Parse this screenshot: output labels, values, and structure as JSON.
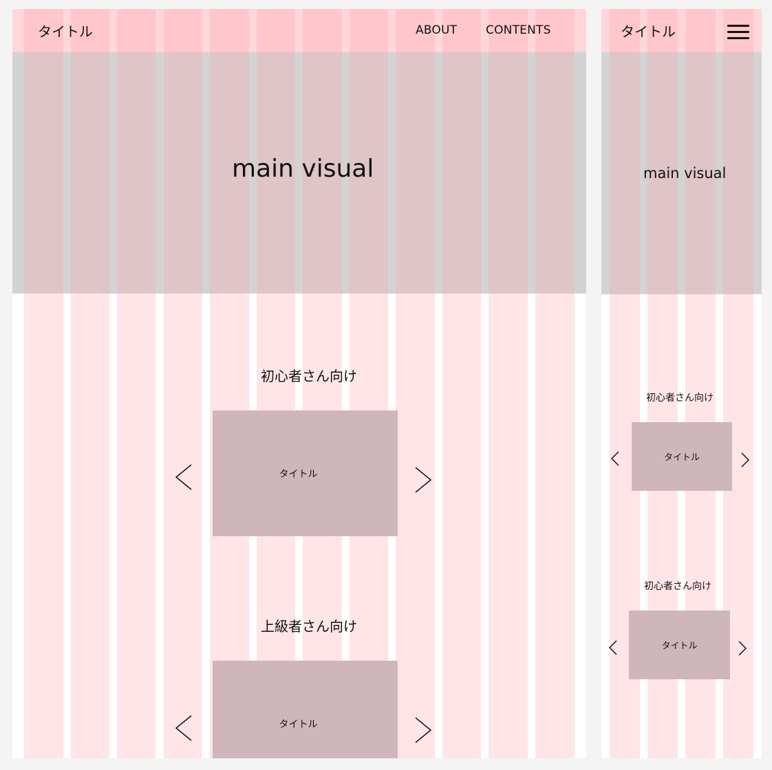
{
  "desktop": {
    "header": {
      "title": "タイトル",
      "nav": [
        "ABOUT",
        "CONTENTS"
      ]
    },
    "hero": {
      "label": "main visual"
    },
    "sections": [
      {
        "title": "初心者さん向け",
        "card_title": "タイトル"
      },
      {
        "title": "上級者さん向け",
        "card_title": "タイトル"
      }
    ]
  },
  "mobile": {
    "header": {
      "title": "タイトル",
      "menu_icon": "hamburger-menu-icon"
    },
    "hero": {
      "label": "main visual"
    },
    "sections": [
      {
        "title": "初心者さん向け",
        "card_title": "タイトル"
      },
      {
        "title": "初心者さん向け",
        "card_title": "タイトル"
      }
    ]
  },
  "icons": {
    "prev": "chevron-left-icon",
    "next": "chevron-right-icon"
  },
  "colors": {
    "header": "#ffd6da",
    "hero": "#d3d3d3",
    "grid_column": "#ffe3e6",
    "card": "#ddc0c3",
    "background": "#f4f4f4"
  }
}
